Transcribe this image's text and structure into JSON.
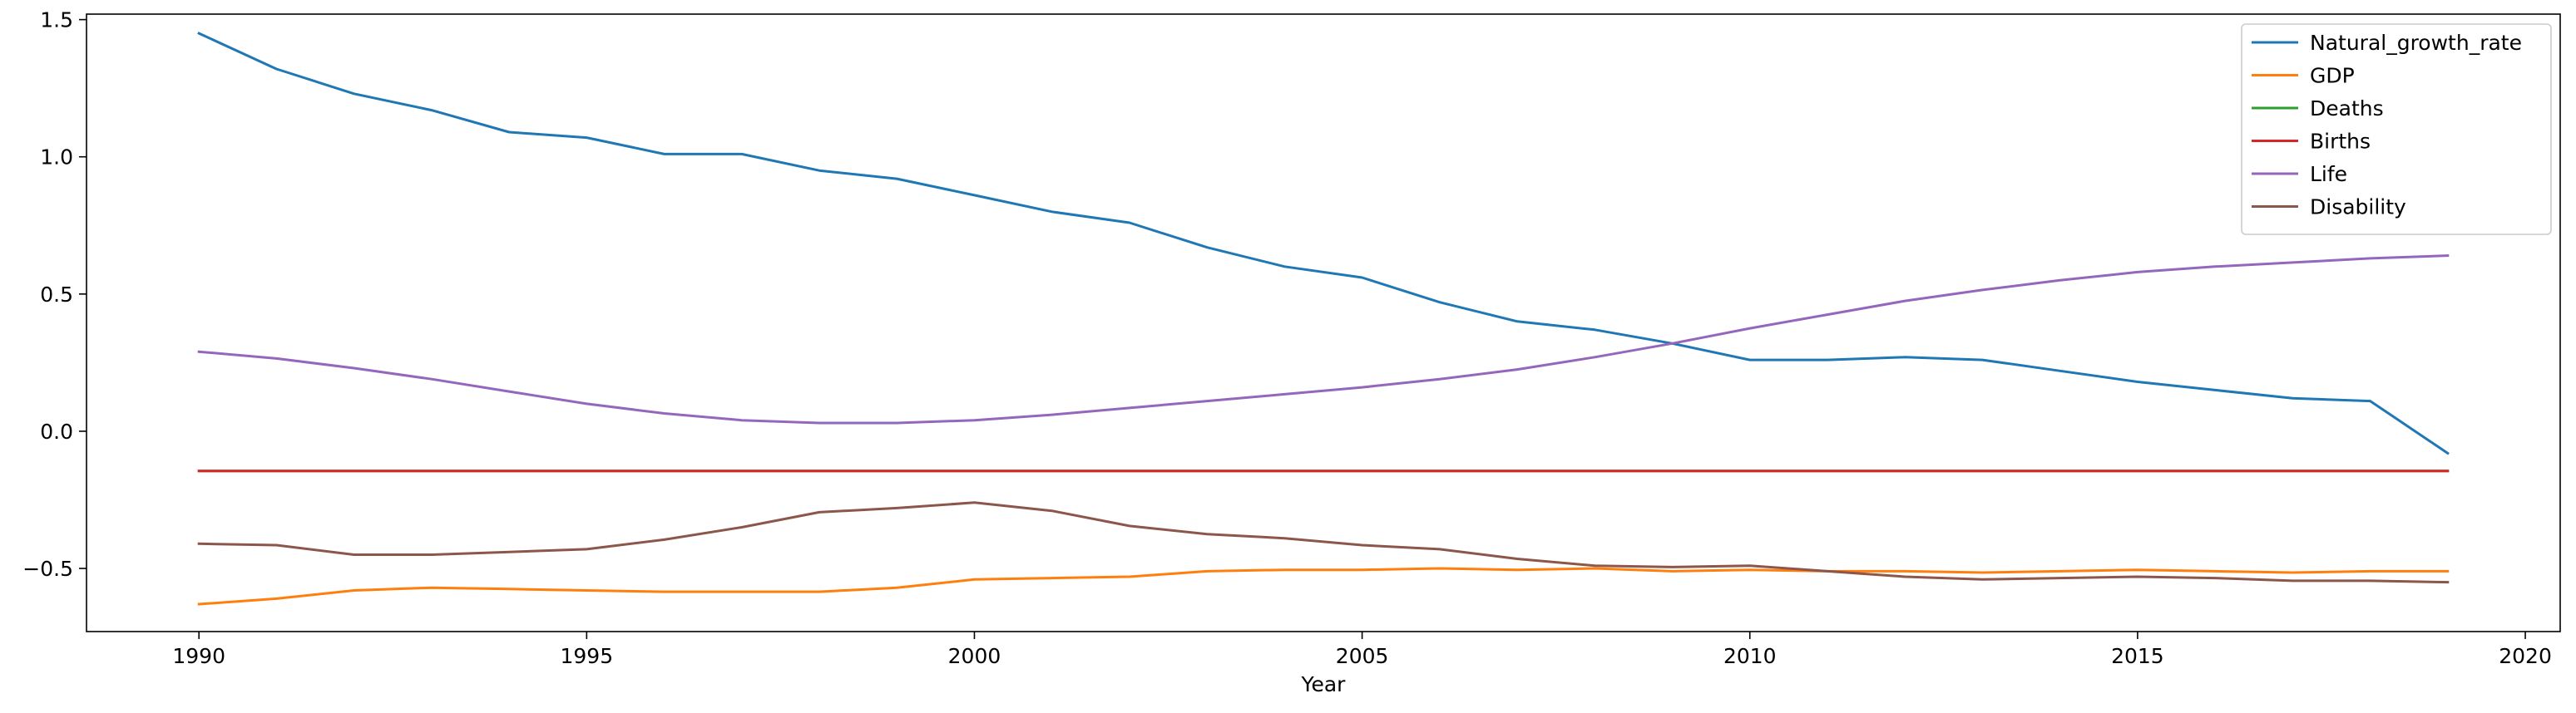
{
  "chart_data": {
    "type": "line",
    "title": "",
    "xlabel": "Year",
    "ylabel": "",
    "xlim": [
      1988.55,
      2020.45
    ],
    "ylim": [
      -0.73,
      1.52
    ],
    "xticks": [
      1990,
      1995,
      2000,
      2005,
      2010,
      2015,
      2020
    ],
    "yticks": [
      -0.5,
      0.0,
      0.5,
      1.0,
      1.5
    ],
    "ytick_labels": [
      "−0.5",
      "0.0",
      "0.5",
      "1.0",
      "1.5"
    ],
    "grid": false,
    "legend_position": "top-right",
    "x": [
      1990,
      1991,
      1992,
      1993,
      1994,
      1995,
      1996,
      1997,
      1998,
      1999,
      2000,
      2001,
      2002,
      2003,
      2004,
      2005,
      2006,
      2007,
      2008,
      2009,
      2010,
      2011,
      2012,
      2013,
      2014,
      2015,
      2016,
      2017,
      2018,
      2019
    ],
    "series": [
      {
        "name": "Natural_growth_rate",
        "color": "#1f77b4",
        "values": [
          1.45,
          1.32,
          1.23,
          1.17,
          1.09,
          1.07,
          1.01,
          1.01,
          0.95,
          0.92,
          0.86,
          0.8,
          0.76,
          0.67,
          0.6,
          0.56,
          0.47,
          0.4,
          0.37,
          0.32,
          0.26,
          0.26,
          0.27,
          0.26,
          0.22,
          0.18,
          0.15,
          0.12,
          0.11,
          -0.08
        ]
      },
      {
        "name": "GDP",
        "color": "#ff7f0e",
        "values": [
          -0.63,
          -0.61,
          -0.58,
          -0.57,
          -0.575,
          -0.58,
          -0.585,
          -0.585,
          -0.585,
          -0.57,
          -0.54,
          -0.535,
          -0.53,
          -0.51,
          -0.505,
          -0.505,
          -0.5,
          -0.505,
          -0.5,
          -0.51,
          -0.505,
          -0.51,
          -0.51,
          -0.515,
          -0.51,
          -0.505,
          -0.51,
          -0.515,
          -0.51,
          -0.51
        ]
      },
      {
        "name": "Deaths",
        "color": "#2ca02c",
        "values": [
          -0.145,
          -0.145,
          -0.145,
          -0.145,
          -0.145,
          -0.145,
          -0.145,
          -0.145,
          -0.145,
          -0.145,
          -0.145,
          -0.145,
          -0.145,
          -0.145,
          -0.145,
          -0.145,
          -0.145,
          -0.145,
          -0.145,
          -0.145,
          -0.145,
          -0.145,
          -0.145,
          -0.145,
          -0.145,
          -0.145,
          -0.145,
          -0.145,
          -0.145,
          -0.145
        ]
      },
      {
        "name": "Births",
        "color": "#d62728",
        "values": [
          -0.145,
          -0.145,
          -0.145,
          -0.145,
          -0.145,
          -0.145,
          -0.145,
          -0.145,
          -0.145,
          -0.145,
          -0.145,
          -0.145,
          -0.145,
          -0.145,
          -0.145,
          -0.145,
          -0.145,
          -0.145,
          -0.145,
          -0.145,
          -0.145,
          -0.145,
          -0.145,
          -0.145,
          -0.145,
          -0.145,
          -0.145,
          -0.145,
          -0.145,
          -0.145
        ]
      },
      {
        "name": "Life",
        "color": "#9467bd",
        "values": [
          0.29,
          0.265,
          0.23,
          0.19,
          0.145,
          0.1,
          0.065,
          0.04,
          0.03,
          0.03,
          0.04,
          0.06,
          0.085,
          0.11,
          0.135,
          0.16,
          0.19,
          0.225,
          0.27,
          0.32,
          0.375,
          0.425,
          0.475,
          0.515,
          0.55,
          0.58,
          0.6,
          0.615,
          0.63,
          0.64
        ]
      },
      {
        "name": "Disability",
        "color": "#8c564b",
        "values": [
          -0.41,
          -0.415,
          -0.45,
          -0.45,
          -0.44,
          -0.43,
          -0.395,
          -0.35,
          -0.295,
          -0.28,
          -0.26,
          -0.29,
          -0.345,
          -0.375,
          -0.39,
          -0.415,
          -0.43,
          -0.465,
          -0.49,
          -0.495,
          -0.49,
          -0.51,
          -0.53,
          -0.54,
          -0.535,
          -0.53,
          -0.535,
          -0.545,
          -0.545,
          -0.55
        ]
      }
    ]
  }
}
